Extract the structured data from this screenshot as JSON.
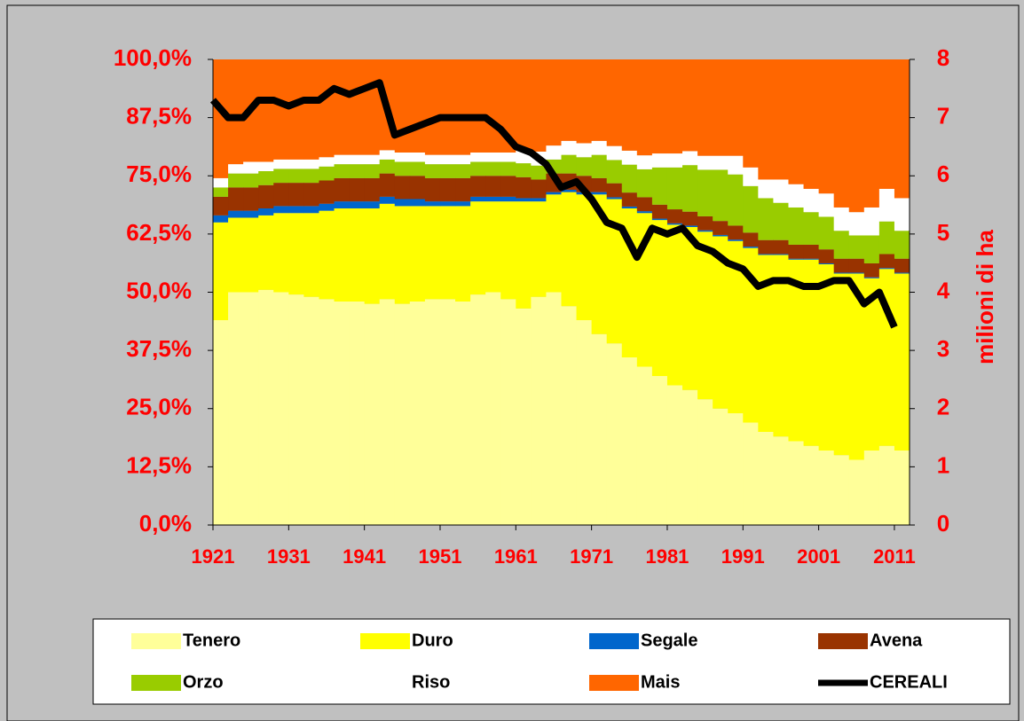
{
  "chart_data": {
    "type": "stacked-bar-line",
    "x": [
      1921,
      1923,
      1925,
      1927,
      1929,
      1931,
      1933,
      1935,
      1937,
      1939,
      1941,
      1943,
      1945,
      1947,
      1949,
      1951,
      1953,
      1955,
      1957,
      1959,
      1961,
      1963,
      1965,
      1967,
      1969,
      1971,
      1973,
      1975,
      1977,
      1979,
      1981,
      1983,
      1985,
      1987,
      1989,
      1991,
      1993,
      1995,
      1997,
      1999,
      2001,
      2003,
      2005,
      2007,
      2009,
      2011
    ],
    "series": [
      {
        "name": "Tenero",
        "color": "#ffff99",
        "values": [
          44,
          50,
          50,
          50.5,
          50,
          49.5,
          49,
          48.5,
          48,
          48,
          47.5,
          48.5,
          47.5,
          48,
          48.5,
          48.5,
          48,
          49.5,
          50,
          48.5,
          46.5,
          49,
          50,
          47,
          44,
          41,
          39,
          36,
          34,
          32,
          30,
          29,
          27,
          25,
          24,
          22,
          20,
          19,
          18,
          17,
          16,
          15,
          14,
          16,
          17,
          16
        ]
      },
      {
        "name": "Duro",
        "color": "#ffff00",
        "values": [
          21,
          16,
          16,
          16,
          17,
          17.5,
          18,
          19,
          20,
          20,
          20.5,
          20.5,
          21,
          20.5,
          20,
          20,
          20.5,
          20,
          19.5,
          21,
          23,
          20.5,
          21,
          24.5,
          27,
          30,
          31,
          32,
          33,
          33.5,
          34.5,
          35,
          36,
          37,
          37,
          37.5,
          38,
          39,
          39,
          40,
          40,
          39,
          40,
          37,
          38,
          38
        ]
      },
      {
        "name": "Segale",
        "color": "#0066cc",
        "values": [
          1.5,
          1.5,
          1.5,
          1.5,
          1.5,
          1.5,
          1.5,
          1.5,
          1.5,
          1.5,
          1.5,
          1.5,
          1.5,
          1.5,
          1,
          1,
          1,
          1,
          1,
          1,
          0.7,
          0.7,
          0.5,
          0.5,
          0.5,
          0.5,
          0.4,
          0.4,
          0.4,
          0.3,
          0.3,
          0.3,
          0.3,
          0.3,
          0.3,
          0.3,
          0.2,
          0.2,
          0.2,
          0.2,
          0.2,
          0.2,
          0.2,
          0.2,
          0.2,
          0.2
        ]
      },
      {
        "name": "Avena",
        "color": "#993300",
        "values": [
          4,
          5,
          5,
          5,
          5,
          5,
          5,
          5,
          5,
          5,
          5,
          5,
          5,
          5,
          5,
          5,
          5,
          4.5,
          4.5,
          4.5,
          4.5,
          4,
          4,
          3.5,
          3.5,
          3,
          3,
          3,
          3,
          3,
          3,
          3,
          3,
          3,
          3,
          3,
          3,
          3,
          3,
          3,
          3,
          3,
          3,
          3,
          3,
          3
        ]
      },
      {
        "name": "Orzo",
        "color": "#99cc00",
        "values": [
          2,
          3,
          3,
          3,
          3,
          3,
          3,
          3,
          3,
          3,
          3,
          3,
          3,
          3,
          3,
          3,
          3,
          3,
          3,
          3,
          3,
          3,
          3,
          4,
          4,
          5,
          5,
          6,
          6,
          8,
          9,
          10,
          10,
          11,
          11,
          10,
          9,
          8,
          8,
          7,
          7,
          6,
          5,
          6,
          7,
          6
        ]
      },
      {
        "name": "Riso",
        "color": "#ffffff",
        "values": [
          2,
          2,
          2.5,
          2,
          2,
          2,
          2,
          2,
          2,
          2,
          2,
          2,
          2,
          2,
          2,
          2,
          2,
          2,
          2,
          2,
          3,
          3,
          3,
          3,
          3,
          3,
          3,
          3,
          3,
          3,
          3,
          3,
          3,
          3,
          4,
          4,
          4,
          5,
          5,
          5,
          5,
          5,
          5,
          6,
          7,
          7
        ]
      },
      {
        "name": "Mais",
        "color": "#ff6600",
        "values": [
          25.5,
          22.5,
          22,
          22,
          21.5,
          21.5,
          21.5,
          21,
          20.5,
          20.5,
          20.5,
          19.5,
          20,
          20,
          20.5,
          20.5,
          20.5,
          20,
          20,
          20,
          19.3,
          19.8,
          18.5,
          17.5,
          18,
          17.5,
          18.6,
          19.6,
          20.6,
          20.2,
          20.2,
          19.7,
          20.7,
          20.7,
          20.7,
          23.2,
          25.8,
          25.8,
          26.8,
          27.8,
          28.8,
          31.8,
          32.8,
          31.8,
          27.8,
          29.8
        ]
      },
      {
        "name": "CEREALI",
        "color": "#000000",
        "axis": "y2",
        "values": [
          7.3,
          7.0,
          7.0,
          7.3,
          7.3,
          7.2,
          7.3,
          7.3,
          7.5,
          7.4,
          7.5,
          7.6,
          6.7,
          6.8,
          6.9,
          7.0,
          7.0,
          7.0,
          7.0,
          6.8,
          6.5,
          6.4,
          6.2,
          5.8,
          5.9,
          5.6,
          5.2,
          5.1,
          4.6,
          5.1,
          5.0,
          5.1,
          4.8,
          4.7,
          4.5,
          4.4,
          4.1,
          4.2,
          4.2,
          4.1,
          4.1,
          4.2,
          4.2,
          3.8,
          4.0,
          3.4
        ]
      }
    ],
    "xlim": [
      1921,
      2013
    ],
    "xticks": [
      1921,
      1931,
      1941,
      1951,
      1961,
      1971,
      1981,
      1991,
      2001,
      2011
    ],
    "ylim": [
      0,
      100
    ],
    "yticks": [
      {
        "value": 0,
        "label": "0,0%"
      },
      {
        "value": 12.5,
        "label": "12,5%"
      },
      {
        "value": 25,
        "label": "25,0%"
      },
      {
        "value": 37.5,
        "label": "37,5%"
      },
      {
        "value": 50,
        "label": "50,0%"
      },
      {
        "value": 62.5,
        "label": "62,5%"
      },
      {
        "value": 75,
        "label": "75,0%"
      },
      {
        "value": 87.5,
        "label": "87,5%"
      },
      {
        "value": 100,
        "label": "100,0%"
      }
    ],
    "y2lim": [
      0,
      8
    ],
    "y2ticks": [
      0,
      1,
      2,
      3,
      4,
      5,
      6,
      7,
      8
    ],
    "y2label": "milioni di ha"
  }
}
